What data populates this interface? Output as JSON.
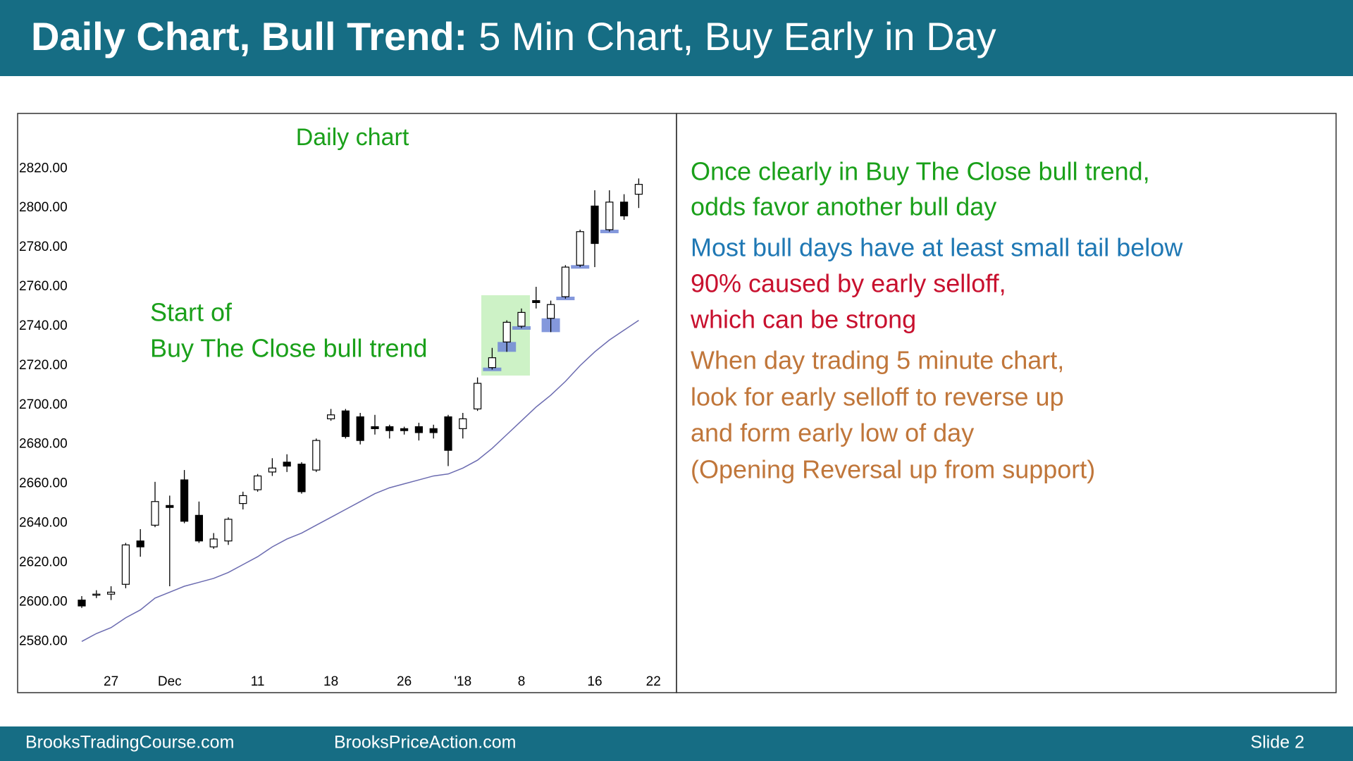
{
  "header": {
    "title_bold": "Daily Chart, Bull Trend:",
    "title_rest": "5 Min Chart, Buy Early in Day"
  },
  "chart_data": {
    "type": "candlestick",
    "title": "Daily chart",
    "annotations": [
      "Start of",
      "Buy The Close bull trend"
    ],
    "categories": [
      null,
      null,
      "27",
      null,
      null,
      null,
      "Dec",
      null,
      null,
      null,
      null,
      null,
      "11",
      null,
      null,
      null,
      null,
      "18",
      null,
      null,
      null,
      null,
      "26",
      null,
      null,
      null,
      "'18",
      null,
      null,
      null,
      "8",
      null,
      null,
      null,
      null,
      "16",
      null,
      null,
      null,
      "22"
    ],
    "open": [
      2601,
      2604,
      2604,
      2609,
      2631,
      2639,
      2649,
      2662,
      2644,
      2628,
      2631,
      2650,
      2657,
      2666,
      2671,
      2670,
      2667,
      2693,
      2697,
      2694,
      2689,
      2689,
      2688,
      2689,
      2688,
      2694,
      2688,
      2698,
      2719,
      2732,
      2740,
      2753,
      2744,
      2755,
      2771,
      2801,
      2789,
      2803,
      2807,
      null
    ],
    "high": [
      2603,
      2606,
      2608,
      2630,
      2637,
      2661,
      2654,
      2667,
      2651,
      2635,
      2643,
      2656,
      2665,
      2673,
      2675,
      2671,
      2683,
      2698,
      2698,
      2696,
      2695,
      2690,
      2689,
      2691,
      2690,
      2695,
      2696,
      2714,
      2729,
      2743,
      2749,
      2760,
      2753,
      2771,
      2789,
      2809,
      2809,
      2807,
      2815,
      null
    ],
    "low": [
      2597,
      2602,
      2601,
      2607,
      2623,
      2638,
      2608,
      2640,
      2630,
      2627,
      2629,
      2647,
      2656,
      2664,
      2666,
      2655,
      2666,
      2692,
      2683,
      2680,
      2685,
      2683,
      2685,
      2682,
      2683,
      2669,
      2683,
      2697,
      2718,
      2727,
      2739,
      2749,
      2737,
      2754,
      2770,
      2770,
      2788,
      2794,
      2800,
      null
    ],
    "close": [
      2598,
      2604,
      2605,
      2629,
      2628,
      2651,
      2648,
      2641,
      2631,
      2632,
      2642,
      2654,
      2664,
      2668,
      2669,
      2656,
      2682,
      2695,
      2684,
      2682,
      2688,
      2687,
      2687,
      2686,
      2686,
      2677,
      2693,
      2711,
      2724,
      2742,
      2747,
      2752,
      2751,
      2770,
      2788,
      2782,
      2803,
      2796,
      2812,
      null
    ],
    "up_color": "#ffffff",
    "down_color": "#000000",
    "moving_average": {
      "color": "#6b6bb0",
      "values": [
        2580,
        2584,
        2587,
        2592,
        2596,
        2602,
        2605,
        2608,
        2610,
        2612,
        2615,
        2619,
        2623,
        2628,
        2632,
        2635,
        2639,
        2643,
        2647,
        2651,
        2655,
        2658,
        2660,
        2662,
        2664,
        2665,
        2668,
        2672,
        2678,
        2685,
        2692,
        2699,
        2705,
        2712,
        2720,
        2727,
        2733,
        2738,
        2743,
        null
      ]
    },
    "ylim": [
      2554,
      2848
    ],
    "yticks": [
      {
        "value": 2580,
        "label": "2580.00"
      },
      {
        "value": 2600,
        "label": "2600.00"
      },
      {
        "value": 2620,
        "label": "2620.00"
      },
      {
        "value": 2640,
        "label": "2640.00"
      },
      {
        "value": 2660,
        "label": "2660.00"
      },
      {
        "value": 2680,
        "label": "2680.00"
      },
      {
        "value": 2700,
        "label": "2700.00"
      },
      {
        "value": 2720,
        "label": "2720.00"
      },
      {
        "value": 2740,
        "label": "2740.00"
      },
      {
        "value": 2760,
        "label": "2760.00"
      },
      {
        "value": 2780,
        "label": "2780.00"
      },
      {
        "value": 2800,
        "label": "2800.00"
      },
      {
        "value": 2820,
        "label": "2820.00"
      }
    ],
    "grid": false
  },
  "notes": [
    {
      "text": "Once clearly in Buy The Close bull trend,",
      "color": "#1aa01a"
    },
    {
      "text": "odds favor another bull day",
      "color": "#1aa01a"
    },
    {
      "text": "Most bull days have at least small tail below",
      "color": "#1f78b4"
    },
    {
      "text": "90% caused by early selloff,",
      "color": "#c8102e"
    },
    {
      "text": "which can be strong",
      "color": "#c8102e"
    },
    {
      "text": "When day trading 5 minute chart,",
      "color": "#c0763a"
    },
    {
      "text": "look for early selloff to reverse up",
      "color": "#c0763a"
    },
    {
      "text": "and form early low of day",
      "color": "#c0763a"
    },
    {
      "text": "(Opening Reversal up from support)",
      "color": "#c0763a"
    }
  ],
  "footer": {
    "left": "BrooksTradingCourse.com",
    "middle": "BrooksPriceAction.com",
    "right": "Slide 2"
  }
}
